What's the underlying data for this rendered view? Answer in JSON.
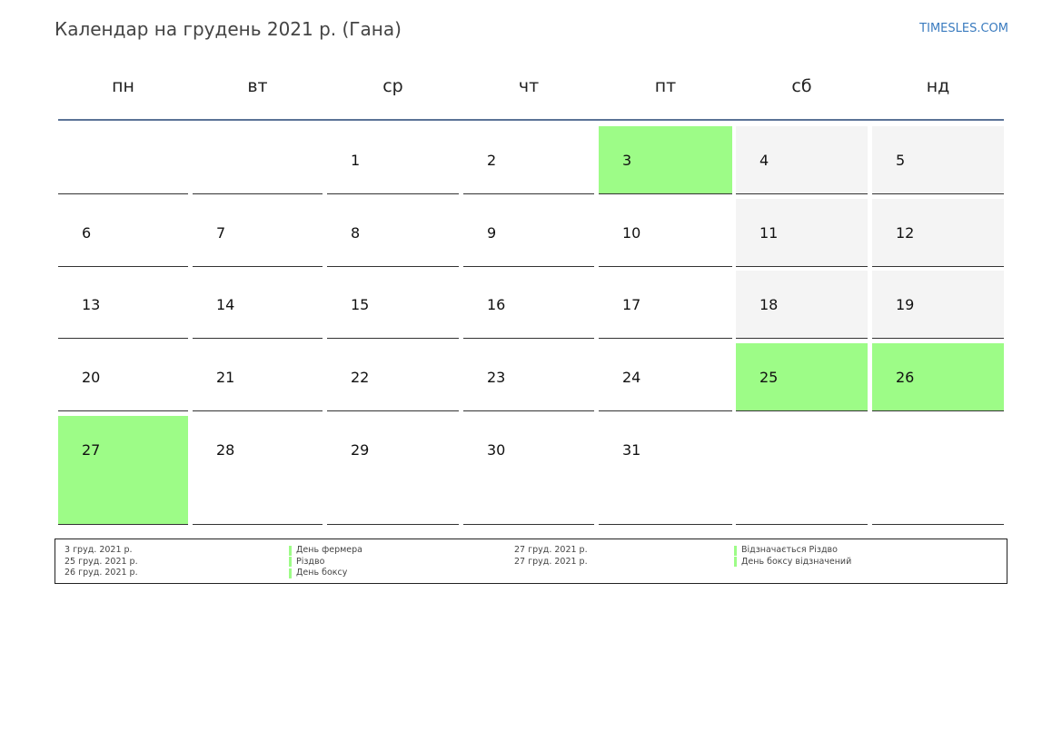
{
  "title": "Календар на грудень 2021 р. (Гана)",
  "site": "TIMESLES.COM",
  "colors": {
    "holiday": "#9dfc87",
    "weekend": "#f4f4f4",
    "header_rule": "#5b7397",
    "link": "#3a7bbf"
  },
  "weekdays": [
    "пн",
    "вт",
    "ср",
    "чт",
    "пт",
    "сб",
    "нд"
  ],
  "weeks": [
    [
      null,
      null,
      1,
      2,
      3,
      4,
      5
    ],
    [
      6,
      7,
      8,
      9,
      10,
      11,
      12
    ],
    [
      13,
      14,
      15,
      16,
      17,
      18,
      19
    ],
    [
      20,
      21,
      22,
      23,
      24,
      25,
      26
    ],
    [
      27,
      28,
      29,
      30,
      31,
      null,
      null
    ]
  ],
  "holidays": [
    3,
    25,
    26,
    27
  ],
  "legend": {
    "col1": [
      {
        "date": "3 груд. 2021 р.",
        "name": "День фермера"
      },
      {
        "date": "25 груд. 2021 р.",
        "name": "Різдво"
      },
      {
        "date": "26 груд. 2021 р.",
        "name": "День боксу"
      }
    ],
    "col2": [
      {
        "date": "27 груд. 2021 р.",
        "name": "Відзначається Різдво"
      },
      {
        "date": "27 груд. 2021 р.",
        "name": "День боксу відзначений"
      }
    ]
  }
}
